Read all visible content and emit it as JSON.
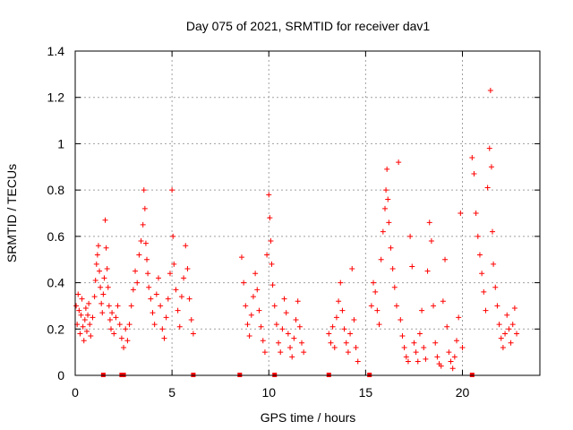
{
  "chart_data": {
    "type": "scatter",
    "title": "Day 075 of 2021, SRMTID for receiver dav1",
    "xlabel": "GPS time / hours",
    "ylabel": "SRMTID / TECUs",
    "xlim": [
      0,
      24
    ],
    "ylim": [
      0,
      1.4
    ],
    "xticks": [
      0,
      5,
      10,
      15,
      20
    ],
    "xtick_labels": [
      "0",
      "5",
      "10",
      "15",
      "20"
    ],
    "yticks": [
      0,
      0.2,
      0.4,
      0.6,
      0.8,
      1.0,
      1.2,
      1.4
    ],
    "ytick_labels": [
      "0",
      "0.2",
      "0.4",
      "0.6",
      "0.8",
      "1",
      "1.2",
      "1.4"
    ],
    "grid": true,
    "legend": "none",
    "series_color": "#ff0000",
    "marker": "plus",
    "points": [
      [
        0.05,
        0.3
      ],
      [
        0.1,
        0.22
      ],
      [
        0.15,
        0.35
      ],
      [
        0.2,
        0.28
      ],
      [
        0.25,
        0.18
      ],
      [
        0.3,
        0.26
      ],
      [
        0.35,
        0.33
      ],
      [
        0.4,
        0.21
      ],
      [
        0.45,
        0.15
      ],
      [
        0.5,
        0.24
      ],
      [
        0.55,
        0.29
      ],
      [
        0.6,
        0.19
      ],
      [
        0.65,
        0.26
      ],
      [
        0.7,
        0.31
      ],
      [
        0.75,
        0.22
      ],
      [
        0.8,
        0.17
      ],
      [
        0.9,
        0.25
      ],
      [
        1.0,
        0.34
      ],
      [
        1.05,
        0.41
      ],
      [
        1.1,
        0.48
      ],
      [
        1.15,
        0.52
      ],
      [
        1.2,
        0.56
      ],
      [
        1.25,
        0.45
      ],
      [
        1.3,
        0.38
      ],
      [
        1.35,
        0.31
      ],
      [
        1.4,
        0.27
      ],
      [
        1.45,
        0.35
      ],
      [
        1.5,
        0.42
      ],
      [
        1.55,
        0.67
      ],
      [
        1.6,
        0.55
      ],
      [
        1.65,
        0.46
      ],
      [
        1.7,
        0.38
      ],
      [
        1.75,
        0.3
      ],
      [
        1.8,
        0.24
      ],
      [
        1.85,
        0.2
      ],
      [
        1.9,
        0.27
      ],
      [
        2.0,
        0.18
      ],
      [
        2.1,
        0.25
      ],
      [
        2.2,
        0.3
      ],
      [
        2.3,
        0.22
      ],
      [
        2.4,
        0.16
      ],
      [
        2.5,
        0.12
      ],
      [
        2.6,
        0.2
      ],
      [
        2.7,
        0.15
      ],
      [
        2.8,
        0.22
      ],
      [
        2.9,
        0.3
      ],
      [
        3.0,
        0.37
      ],
      [
        3.1,
        0.45
      ],
      [
        3.2,
        0.4
      ],
      [
        3.3,
        0.52
      ],
      [
        3.4,
        0.58
      ],
      [
        3.5,
        0.65
      ],
      [
        3.55,
        0.8
      ],
      [
        3.6,
        0.72
      ],
      [
        3.65,
        0.57
      ],
      [
        3.7,
        0.5
      ],
      [
        3.75,
        0.44
      ],
      [
        3.8,
        0.38
      ],
      [
        3.9,
        0.33
      ],
      [
        4.0,
        0.27
      ],
      [
        4.1,
        0.22
      ],
      [
        4.2,
        0.35
      ],
      [
        4.3,
        0.42
      ],
      [
        4.4,
        0.3
      ],
      [
        4.5,
        0.2
      ],
      [
        4.6,
        0.16
      ],
      [
        4.7,
        0.25
      ],
      [
        4.8,
        0.33
      ],
      [
        4.9,
        0.44
      ],
      [
        5.0,
        0.8
      ],
      [
        5.05,
        0.6
      ],
      [
        5.1,
        0.48
      ],
      [
        5.2,
        0.37
      ],
      [
        5.3,
        0.28
      ],
      [
        5.4,
        0.21
      ],
      [
        5.5,
        0.34
      ],
      [
        5.6,
        0.42
      ],
      [
        5.7,
        0.56
      ],
      [
        5.8,
        0.46
      ],
      [
        5.9,
        0.33
      ],
      [
        6.0,
        0.24
      ],
      [
        6.1,
        0.18
      ],
      [
        8.6,
        0.51
      ],
      [
        8.7,
        0.4
      ],
      [
        8.8,
        0.3
      ],
      [
        8.9,
        0.22
      ],
      [
        9.0,
        0.17
      ],
      [
        9.1,
        0.26
      ],
      [
        9.2,
        0.34
      ],
      [
        9.3,
        0.44
      ],
      [
        9.4,
        0.37
      ],
      [
        9.5,
        0.28
      ],
      [
        9.6,
        0.21
      ],
      [
        9.7,
        0.15
      ],
      [
        9.8,
        0.1
      ],
      [
        9.9,
        0.52
      ],
      [
        10.0,
        0.78
      ],
      [
        10.05,
        0.68
      ],
      [
        10.1,
        0.58
      ],
      [
        10.15,
        0.48
      ],
      [
        10.2,
        0.39
      ],
      [
        10.3,
        0.3
      ],
      [
        10.4,
        0.22
      ],
      [
        10.5,
        0.14
      ],
      [
        10.6,
        0.1
      ],
      [
        10.7,
        0.2
      ],
      [
        10.8,
        0.33
      ],
      [
        10.9,
        0.27
      ],
      [
        11.0,
        0.18
      ],
      [
        11.1,
        0.12
      ],
      [
        11.2,
        0.08
      ],
      [
        11.3,
        0.16
      ],
      [
        11.4,
        0.24
      ],
      [
        11.5,
        0.32
      ],
      [
        11.6,
        0.21
      ],
      [
        11.7,
        0.14
      ],
      [
        11.8,
        0.1
      ],
      [
        13.1,
        0.18
      ],
      [
        13.2,
        0.14
      ],
      [
        13.3,
        0.21
      ],
      [
        13.4,
        0.12
      ],
      [
        13.5,
        0.25
      ],
      [
        13.6,
        0.32
      ],
      [
        13.7,
        0.4
      ],
      [
        13.8,
        0.28
      ],
      [
        13.9,
        0.2
      ],
      [
        14.0,
        0.14
      ],
      [
        14.1,
        0.1
      ],
      [
        14.2,
        0.18
      ],
      [
        14.3,
        0.46
      ],
      [
        14.4,
        0.24
      ],
      [
        14.5,
        0.12
      ],
      [
        14.6,
        0.06
      ],
      [
        15.3,
        0.3
      ],
      [
        15.4,
        0.4
      ],
      [
        15.5,
        0.36
      ],
      [
        15.6,
        0.28
      ],
      [
        15.7,
        0.22
      ],
      [
        15.8,
        0.5
      ],
      [
        15.9,
        0.62
      ],
      [
        16.0,
        0.72
      ],
      [
        16.05,
        0.8
      ],
      [
        16.1,
        0.89
      ],
      [
        16.15,
        0.76
      ],
      [
        16.2,
        0.66
      ],
      [
        16.3,
        0.55
      ],
      [
        16.4,
        0.46
      ],
      [
        16.5,
        0.38
      ],
      [
        16.6,
        0.3
      ],
      [
        16.7,
        0.92
      ],
      [
        16.8,
        0.24
      ],
      [
        16.9,
        0.17
      ],
      [
        17.0,
        0.12
      ],
      [
        17.1,
        0.08
      ],
      [
        17.2,
        0.06
      ],
      [
        17.3,
        0.6
      ],
      [
        17.4,
        0.47
      ],
      [
        17.5,
        0.14
      ],
      [
        17.6,
        0.1
      ],
      [
        17.7,
        0.06
      ],
      [
        17.8,
        0.18
      ],
      [
        17.9,
        0.28
      ],
      [
        18.0,
        0.12
      ],
      [
        18.1,
        0.07
      ],
      [
        18.2,
        0.45
      ],
      [
        18.3,
        0.66
      ],
      [
        18.4,
        0.58
      ],
      [
        18.5,
        0.3
      ],
      [
        18.6,
        0.14
      ],
      [
        18.7,
        0.08
      ],
      [
        18.8,
        0.05
      ],
      [
        18.9,
        0.04
      ],
      [
        19.0,
        0.32
      ],
      [
        19.1,
        0.5
      ],
      [
        19.2,
        0.21
      ],
      [
        19.3,
        0.1
      ],
      [
        19.4,
        0.06
      ],
      [
        19.5,
        0.03
      ],
      [
        19.6,
        0.08
      ],
      [
        19.7,
        0.15
      ],
      [
        19.8,
        0.25
      ],
      [
        19.9,
        0.7
      ],
      [
        20.0,
        0.12
      ],
      [
        20.5,
        0.94
      ],
      [
        20.6,
        0.87
      ],
      [
        20.7,
        0.7
      ],
      [
        20.8,
        0.6
      ],
      [
        20.9,
        0.52
      ],
      [
        21.0,
        0.44
      ],
      [
        21.1,
        0.36
      ],
      [
        21.2,
        0.28
      ],
      [
        21.3,
        0.81
      ],
      [
        21.4,
        0.98
      ],
      [
        21.45,
        1.23
      ],
      [
        21.5,
        0.9
      ],
      [
        21.55,
        0.62
      ],
      [
        21.6,
        0.48
      ],
      [
        21.7,
        0.38
      ],
      [
        21.8,
        0.3
      ],
      [
        21.9,
        0.22
      ],
      [
        22.0,
        0.16
      ],
      [
        22.1,
        0.12
      ],
      [
        22.2,
        0.18
      ],
      [
        22.3,
        0.26
      ],
      [
        22.4,
        0.2
      ],
      [
        22.5,
        0.14
      ],
      [
        22.6,
        0.22
      ],
      [
        22.7,
        0.29
      ],
      [
        22.8,
        0.18
      ]
    ],
    "baseline_markers": [
      1.45,
      2.4,
      2.5,
      6.1,
      8.5,
      10.3,
      13.1,
      15.2,
      20.5
    ]
  }
}
